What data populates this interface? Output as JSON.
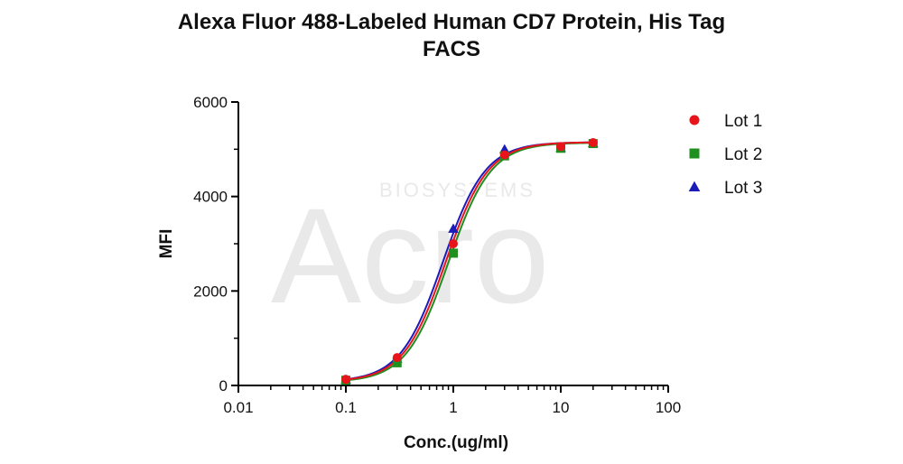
{
  "chart_data": {
    "type": "scatter",
    "title": "Alexa Fluor 488-Labeled Human CD7 Protein, His Tag",
    "subtitle": "FACS",
    "xlabel": "Conc.(ug/ml)",
    "ylabel": "MFI",
    "xscale": "log",
    "xlim": [
      0.01,
      100
    ],
    "ylim": [
      0,
      6000
    ],
    "x_ticks": [
      "0.01",
      "0.1",
      "1",
      "10",
      "100"
    ],
    "y_ticks": [
      "0",
      "2000",
      "4000",
      "6000"
    ],
    "legend_position": "top-right",
    "grid": false,
    "curve_fit": "4-parameter logistic",
    "x": [
      0.1,
      0.3,
      1,
      3,
      10,
      20
    ],
    "series": [
      {
        "name": "Lot 1",
        "marker": "circle",
        "color": "#e8141b",
        "values": [
          130,
          590,
          3000,
          4880,
          5060,
          5140
        ],
        "fit": {
          "bottom": 80,
          "top": 5150,
          "ec50": 0.85,
          "hill": 2.2
        }
      },
      {
        "name": "Lot 2",
        "marker": "square",
        "color": "#1f8f1f",
        "values": [
          110,
          480,
          2800,
          4860,
          5020,
          5120
        ],
        "fit": {
          "bottom": 70,
          "top": 5140,
          "ec50": 0.9,
          "hill": 2.2
        }
      },
      {
        "name": "Lot 3",
        "marker": "triangle",
        "color": "#1b1bb8",
        "values": [
          125,
          570,
          3320,
          5000,
          5030,
          5130
        ],
        "fit": {
          "bottom": 80,
          "top": 5150,
          "ec50": 0.8,
          "hill": 2.2
        }
      }
    ]
  },
  "watermark": {
    "logo": "Acro",
    "tagline": "BIOSYSTEMS"
  }
}
